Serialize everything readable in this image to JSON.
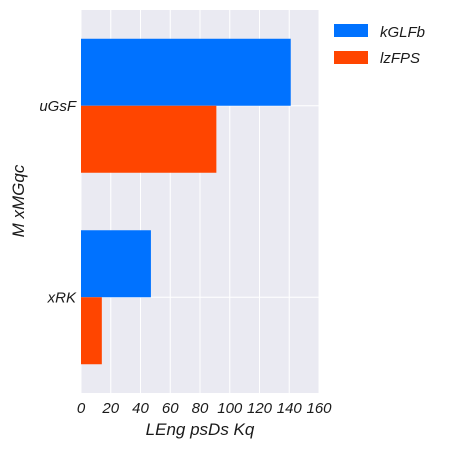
{
  "chart_data": {
    "type": "bar",
    "orientation": "horizontal",
    "categories": [
      "uGsF",
      "xRK"
    ],
    "series": [
      {
        "name": "kGLFb",
        "values": [
          141,
          47
        ],
        "color": "#0072ff"
      },
      {
        "name": "lzFPS",
        "values": [
          91,
          14
        ],
        "color": "#ff4500"
      }
    ],
    "xlabel": "LEng  psDs Kq",
    "ylabel": "M xMGqc",
    "xlim": [
      0,
      160
    ],
    "xticks": [
      0,
      20,
      40,
      60,
      80,
      100,
      120,
      140,
      160
    ],
    "grid": true,
    "legend_position": "outside-right-top",
    "plot_background": "#eaeaf2",
    "grid_color": "#ffffff"
  }
}
